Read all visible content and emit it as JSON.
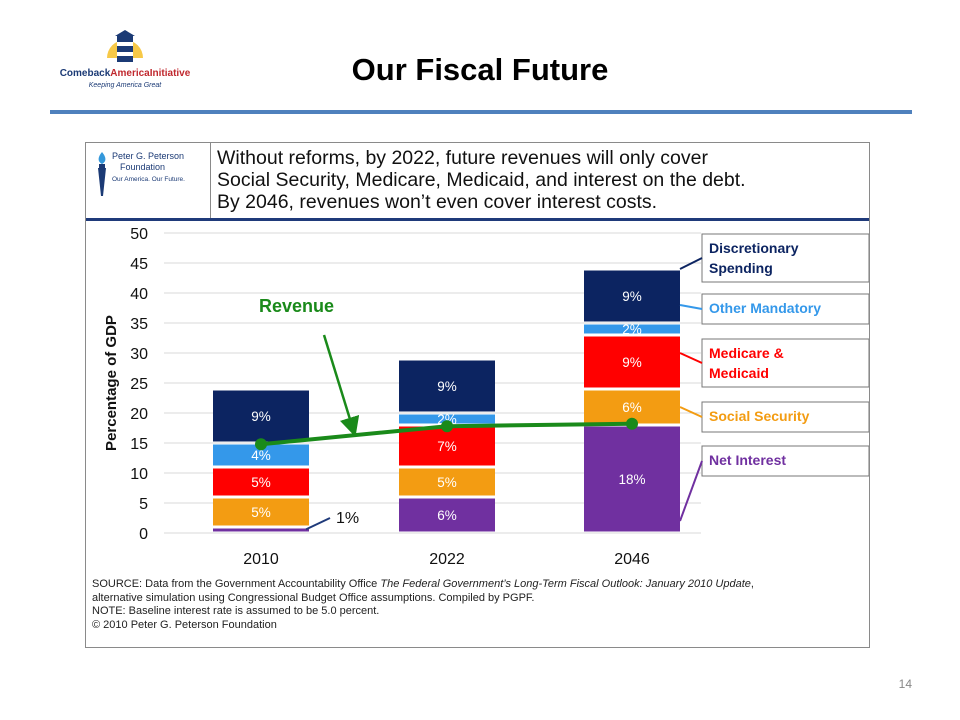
{
  "slide": {
    "title": "Our Fiscal Future",
    "page_number": "14",
    "logo": {
      "name_part1": "Comeback",
      "name_part2": "AmericaInitiative",
      "tagline": "Keeping America Great"
    }
  },
  "figure": {
    "logo": {
      "line1": "Peter G. Peterson",
      "line2": "Foundation",
      "line3": "Our America. Our Future."
    },
    "banner_lines": [
      "Without reforms, by 2022, future revenues will only cover",
      "Social Security, Medicare, Medicaid, and interest on the debt.",
      "By 2046, revenues won’t even cover interest costs."
    ],
    "footnote": {
      "source_prefix": "SOURCE: Data from the Government Accountability Office ",
      "source_title": "The Federal Government’s Long-Term Fiscal Outlook: January 2010 Update",
      "source_suffix": ",",
      "line2": "alternative simulation using Congressional Budget Office assumptions. Compiled by PGPF.",
      "line3": "NOTE: Baseline interest rate is assumed to be 5.0 percent.",
      "line4": "© 2010 Peter G. Peterson Foundation"
    }
  },
  "chart_data": {
    "type": "bar",
    "stacked": true,
    "ylabel": "Percentage of GDP",
    "ylim": [
      0,
      50
    ],
    "yticks": [
      0,
      5,
      10,
      15,
      20,
      25,
      30,
      35,
      40,
      45,
      50
    ],
    "categories": [
      "2010",
      "2022",
      "2046"
    ],
    "series": [
      {
        "name": "Net Interest",
        "color": "#7030a0",
        "values": [
          1,
          6,
          18
        ],
        "labels": [
          "",
          "6%",
          "18%"
        ]
      },
      {
        "name": "Social Security",
        "color": "#f39c12",
        "values": [
          5,
          5,
          6
        ],
        "labels": [
          "5%",
          "5%",
          "6%"
        ]
      },
      {
        "name": "Medicare & Medicaid",
        "color": "#ff0000",
        "values": [
          5,
          7,
          9
        ],
        "labels": [
          "5%",
          "7%",
          "9%"
        ]
      },
      {
        "name": "Other Mandatory",
        "color": "#3498ea",
        "values": [
          4,
          2,
          2
        ],
        "labels": [
          "4%",
          "2%",
          "2%"
        ]
      },
      {
        "name": "Discretionary Spending",
        "color": "#0c2461",
        "values": [
          9,
          9,
          9
        ],
        "labels": [
          "9%",
          "9%",
          "9%"
        ]
      }
    ],
    "legend_label_colors": [
      "#7030a0",
      "#f39c12",
      "#ff0000",
      "#3498ea",
      "#0c2461"
    ],
    "revenue": {
      "name": "Revenue",
      "color": "#1a8a1a",
      "values": [
        14.8,
        17.8,
        18.2
      ]
    },
    "annotations": {
      "small_bar_note": "1%"
    }
  }
}
